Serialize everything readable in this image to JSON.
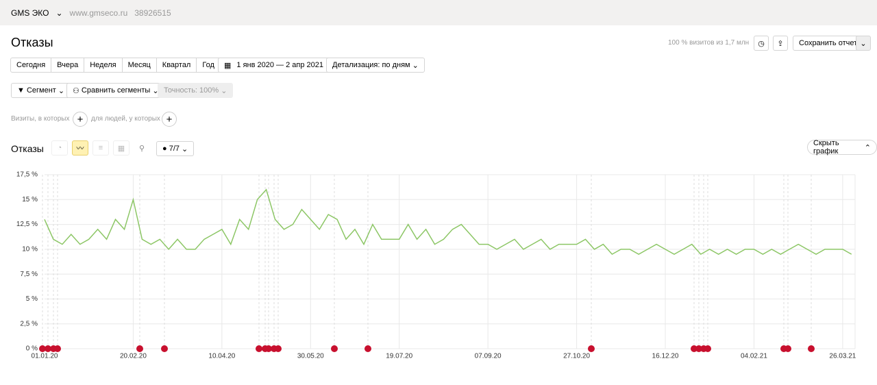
{
  "ui": {
    "site": "GMS ЭКО",
    "url": "www.gmseco.ru",
    "counter": "38926515",
    "page_title": "Отказы",
    "visits_info": "100 % визитов из 1,7 млн",
    "save": "Сохранить отчет",
    "periods": [
      "Сегодня",
      "Вчера",
      "Неделя",
      "Месяц",
      "Квартал",
      "Год"
    ],
    "date_range": "1 янв 2020 — 2 апр 2021",
    "detail": "Детализация: по дням",
    "segment": "Сегмент",
    "compare": "Сравнить сегменты",
    "accuracy": "Точность: 100%",
    "visits_where": "Визиты, в которых",
    "people_where": "для людей, у которых",
    "chart_section": "Отказы",
    "notes": "7/7",
    "hide_chart": "Скрыть график"
  },
  "chart_data": {
    "type": "line",
    "color": "#8cc665",
    "grid": true,
    "categories": [
      "01.01.20",
      null,
      null,
      null,
      null,
      null,
      null,
      null,
      null,
      null,
      "20.02.20",
      null,
      null,
      null,
      null,
      null,
      null,
      null,
      null,
      null,
      "10.04.20",
      null,
      null,
      null,
      null,
      null,
      null,
      null,
      null,
      null,
      "30.05.20",
      null,
      null,
      null,
      null,
      null,
      null,
      null,
      null,
      null,
      "19.07.20",
      null,
      null,
      null,
      null,
      null,
      null,
      null,
      null,
      null,
      "07.09.20",
      null,
      null,
      null,
      null,
      null,
      null,
      null,
      null,
      null,
      "27.10.20",
      null,
      null,
      null,
      null,
      null,
      null,
      null,
      null,
      null,
      "16.12.20",
      null,
      null,
      null,
      null,
      null,
      null,
      null,
      null,
      null,
      "04.02.21",
      null,
      null,
      null,
      null,
      null,
      null,
      null,
      null,
      null,
      "26.03.21",
      null
    ],
    "values": [
      13,
      11,
      10.5,
      11.5,
      10.5,
      11,
      12,
      11,
      13,
      12,
      15,
      11,
      10.5,
      11,
      10,
      11,
      10,
      10,
      11,
      11.5,
      12,
      10.5,
      13,
      12,
      15,
      16,
      13,
      12,
      12.5,
      14,
      13,
      12,
      13.5,
      13,
      11,
      12,
      10.5,
      12.5,
      11,
      11,
      11,
      12.5,
      11,
      12,
      10.5,
      11,
      12,
      12.5,
      11.5,
      10.5,
      10.5,
      10,
      10.5,
      11,
      10,
      10.5,
      11,
      10,
      10.5,
      10.5,
      10.5,
      11,
      10,
      10.5,
      9.5,
      10,
      10,
      9.5,
      10,
      10.5,
      10,
      9.5,
      10,
      10.5,
      9.5,
      10,
      9.5,
      10,
      9.5,
      10,
      10,
      9.5,
      10,
      9.5,
      10,
      10.5,
      10,
      9.5,
      10,
      10,
      10,
      9.5
    ],
    "ylim": [
      0,
      17.5
    ],
    "yticks": [
      {
        "value": 0,
        "label": "0 %"
      },
      {
        "value": 2.5,
        "label": "2,5 %"
      },
      {
        "value": 5,
        "label": "5 %"
      },
      {
        "value": 7.5,
        "label": "7,5 %"
      },
      {
        "value": 10,
        "label": "10 %"
      },
      {
        "value": 12.5,
        "label": "12,5 %"
      },
      {
        "value": 15,
        "label": "15 %"
      },
      {
        "value": 17.5,
        "label": "17,5 %"
      }
    ]
  }
}
